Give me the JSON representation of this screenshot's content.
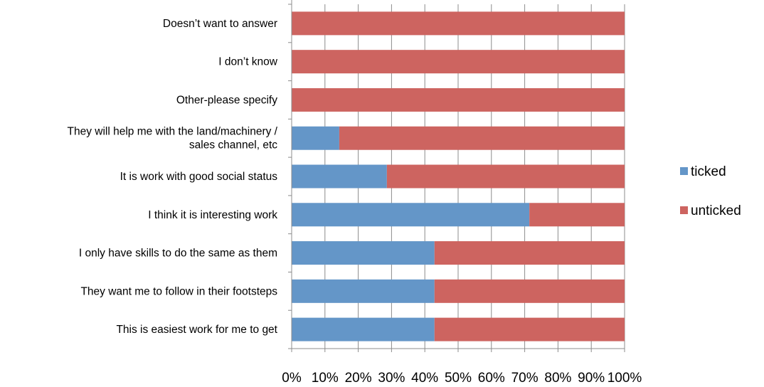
{
  "chart_data": {
    "type": "bar",
    "orientation": "horizontal",
    "stacked": "percent",
    "categories": [
      [
        "Doesn’t want to answer"
      ],
      [
        "I don’t know"
      ],
      [
        "Other-please specify"
      ],
      [
        "They will help me with the land/machinery /",
        "sales channel, etc"
      ],
      [
        "It is work with good social status"
      ],
      [
        "I think it is interesting work"
      ],
      [
        "I only have skills to do the same as them"
      ],
      [
        "They want me to follow in their footsteps"
      ],
      [
        "This is easiest work for me to get"
      ]
    ],
    "series": [
      {
        "name": "ticked",
        "color": "#6496c8",
        "values": [
          0,
          0,
          0,
          14.3,
          28.6,
          71.4,
          42.9,
          42.9,
          42.9
        ]
      },
      {
        "name": "unticked",
        "color": "#cd6460",
        "values": [
          100,
          100,
          100,
          85.7,
          71.4,
          28.6,
          57.1,
          57.1,
          57.1
        ]
      }
    ],
    "xlim": [
      0,
      100
    ],
    "x_ticks": [
      "0%",
      "10%",
      "20%",
      "30%",
      "40%",
      "50%",
      "60%",
      "70%",
      "80%",
      "90%",
      "100%"
    ],
    "grid": true,
    "legend_position": "right",
    "title": "",
    "xlabel": "",
    "ylabel": ""
  }
}
